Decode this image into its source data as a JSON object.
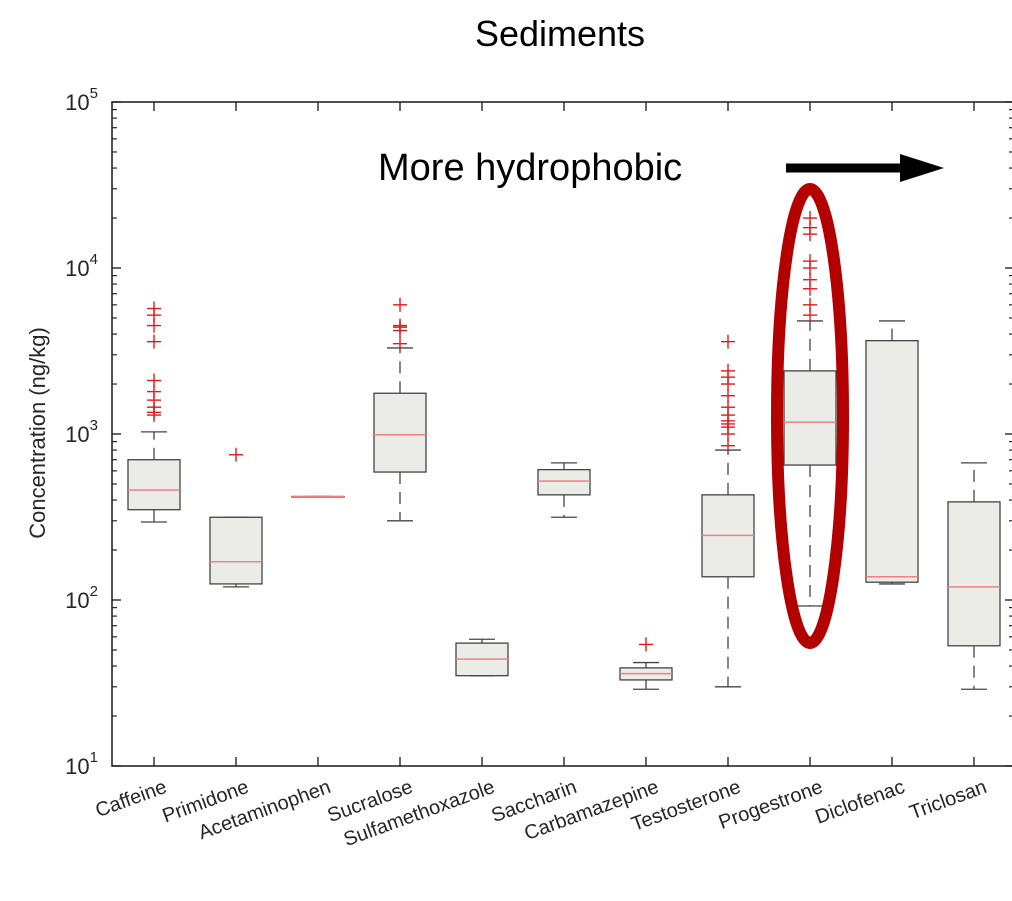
{
  "chart_data": {
    "type": "box",
    "title": "Sediments",
    "ylabel": "Concentration (ng/kg)",
    "xlabel": "",
    "yscale": "log",
    "ylim": [
      10,
      100000
    ],
    "yticks": [
      {
        "value": 10,
        "base": "10",
        "exp": "1"
      },
      {
        "value": 100,
        "base": "10",
        "exp": "2"
      },
      {
        "value": 1000,
        "base": "10",
        "exp": "3"
      },
      {
        "value": 10000,
        "base": "10",
        "exp": "4"
      },
      {
        "value": 100000,
        "base": "10",
        "exp": "5"
      }
    ],
    "grid": false,
    "annotation": {
      "text": "More hydrophobic",
      "arrow": "right"
    },
    "highlight": {
      "category": "Progestrone",
      "shape": "ellipse",
      "color": "#b30000"
    },
    "colors": {
      "box_fill": "#ebebe7",
      "box_edge": "#444444",
      "median": "#f08080",
      "outlier": "#e31a1c",
      "whisker": "#444444"
    },
    "categories": [
      "Caffeine",
      "Primidone",
      "Acetaminophen",
      "Sucralose",
      "Sulfamethoxazole",
      "Saccharin",
      "Carbamazepine",
      "Testosterone",
      "Progestrone",
      "Diclofenac",
      "Triclosan"
    ],
    "boxes": [
      {
        "whislo": 295,
        "q1": 350,
        "med": 460,
        "q3": 700,
        "whishi": 1030,
        "outliers": [
          1300,
          1350,
          1450,
          1600,
          1800,
          2100,
          3600,
          4500,
          5200,
          5700
        ]
      },
      {
        "whislo": 120,
        "q1": 125,
        "med": 170,
        "q3": 315,
        "whishi": 315,
        "outliers": [
          750
        ]
      },
      {
        "whislo": 420,
        "q1": 420,
        "med": 420,
        "q3": 420,
        "whishi": 420,
        "outliers": []
      },
      {
        "whislo": 300,
        "q1": 590,
        "med": 990,
        "q3": 1760,
        "whishi": 3300,
        "outliers": [
          3500,
          4200,
          4400,
          4500,
          6000
        ]
      },
      {
        "whislo": 35,
        "q1": 35,
        "med": 44,
        "q3": 55,
        "whishi": 58,
        "outliers": []
      },
      {
        "whislo": 315,
        "q1": 430,
        "med": 520,
        "q3": 610,
        "whishi": 670,
        "outliers": []
      },
      {
        "whislo": 29,
        "q1": 33,
        "med": 36,
        "q3": 39,
        "whishi": 42,
        "outliers": [
          54
        ]
      },
      {
        "whislo": 30,
        "q1": 138,
        "med": 245,
        "q3": 430,
        "whishi": 800,
        "outliers": [
          850,
          1000,
          1100,
          1150,
          1200,
          1300,
          1450,
          1700,
          2000,
          2200,
          2400,
          3600
        ]
      },
      {
        "whislo": 92,
        "q1": 650,
        "med": 1180,
        "q3": 2400,
        "whishi": 4800,
        "outliers": [
          5200,
          6000,
          7500,
          8500,
          10000,
          11000,
          16000,
          17500,
          20000
        ]
      },
      {
        "whislo": 125,
        "q1": 128,
        "med": 138,
        "q3": 3650,
        "whishi": 4800,
        "outliers": []
      },
      {
        "whislo": 29,
        "q1": 53,
        "med": 120,
        "q3": 390,
        "whishi": 670,
        "outliers": []
      }
    ]
  }
}
